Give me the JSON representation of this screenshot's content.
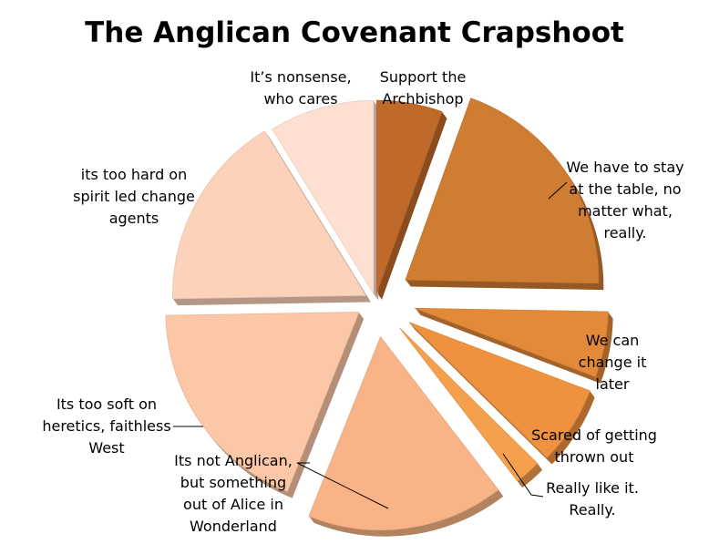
{
  "chart_data": {
    "type": "pie",
    "title": "The Anglican Covenant Crapshoot",
    "categories": [
      "Support the Archbishop",
      "We have to stay at the table, no matter what, really.",
      "We can change it later",
      "Scared of getting thrown out",
      "Really like it. Really.",
      "Its not Anglican, but something out of Alice in Wonderland",
      "Its too soft on heretics, faithless West",
      "its too hard on spirit led change agents",
      "It’s nonsense, who cares"
    ],
    "values": [
      5,
      18,
      5,
      6,
      2,
      15,
      17,
      15,
      8
    ],
    "colors": [
      "#bf6a2a",
      "#cf7d33",
      "#e38a3a",
      "#ef9240",
      "#f4a04d",
      "#f8b486",
      "#fbc7a7",
      "#fcd2ba",
      "#fde0d2"
    ],
    "label_lines": [
      [
        "Support the",
        "Archbishop"
      ],
      [
        "We have to stay",
        "at the table, no",
        "matter what,",
        "really."
      ],
      [
        "We can",
        "change it",
        "later"
      ],
      [
        "Scared of getting",
        "thrown out"
      ],
      [
        "Really like it.",
        "Really."
      ],
      [
        "Its not Anglican,",
        "but something",
        "out of Alice in",
        "Wonderland"
      ],
      [
        "Its too soft on",
        "heretics, faithless",
        "West"
      ],
      [
        "its too hard on",
        "spirit led change",
        "agents"
      ],
      [
        "It’s nonsense,",
        "who cares"
      ]
    ],
    "legend": "none",
    "style": "3d-exploded"
  }
}
